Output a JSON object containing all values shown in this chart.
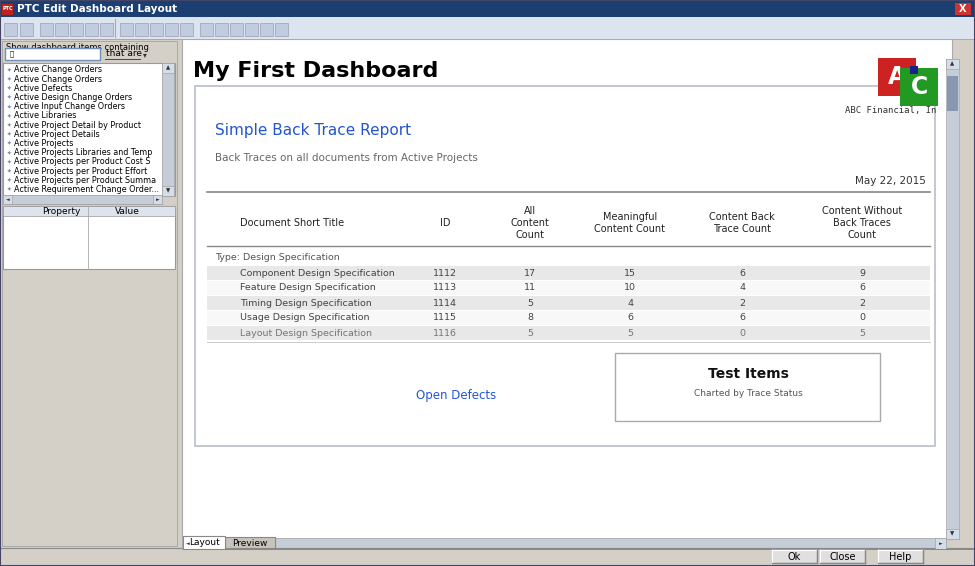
{
  "title_bar_text": "PTC Edit Dashboard Layout",
  "title_bar_color": "#1c3f72",
  "title_bar_text_color": "#ffffff",
  "window_bg": "#d4d0c8",
  "toolbar_bg": "#e8eef8",
  "content_bg": "#ffffff",
  "dashboard_title": "My First Dashboard",
  "company_text": "ABC Financial, In",
  "report_title": "Simple Back Trace Report",
  "report_subtitle": "Back Traces on all documents from Active Projects",
  "report_date": "May 22, 2015",
  "table_headers": [
    "Document Short Title",
    "ID",
    "All\nContent\nCount",
    "Meaningful\nContent Count",
    "Content Back\nTrace Count",
    "Content Without\nBack Traces\nCount"
  ],
  "type_label": "Type: Design Specification",
  "table_rows": [
    [
      "Component Design Specification",
      "1112",
      "17",
      "15",
      "6",
      "9"
    ],
    [
      "Feature Design Specification",
      "1113",
      "11",
      "10",
      "4",
      "6"
    ],
    [
      "Timing Design Specification",
      "1114",
      "5",
      "4",
      "2",
      "2"
    ],
    [
      "Usage Design Specification",
      "1115",
      "8",
      "6",
      "6",
      "0"
    ],
    [
      "Layout Design Specification",
      "1116",
      "5",
      "5",
      "0",
      "5"
    ]
  ],
  "row_colors": [
    "#e8e8e8",
    "#f8f8f8",
    "#e8e8e8",
    "#f8f8f8",
    "#e8e8e8"
  ],
  "sidebar_items": [
    "Active Change Orders",
    "Active Change Orders",
    "Active Defects",
    "Active Design Change Orders",
    "Active Input Change Orders",
    "Active Libraries",
    "Active Project Detail by Product",
    "Active Project Details",
    "Active Projects",
    "Active Projects Libraries and Temp",
    "Active Projects per Product Cost S",
    "Active Projects per Product Effort",
    "Active Projects per Product Summa",
    "Active Requirement Change Order..."
  ],
  "property_col": "Property",
  "value_col": "Value",
  "show_label": "Show dashboard items containing",
  "that_are_label": "that are",
  "bottom_left_text": "Open Defects",
  "bottom_right_title": "Test Items",
  "bottom_right_subtitle": "Charted by Trace Status",
  "tab1": "Layout",
  "tab2": "Preview",
  "btn1": "Ok",
  "btn2": "Close",
  "btn3": "Help",
  "logo_a_bg": "#cc2222",
  "logo_c_bg": "#229922",
  "logo_blue": "#1a2288"
}
